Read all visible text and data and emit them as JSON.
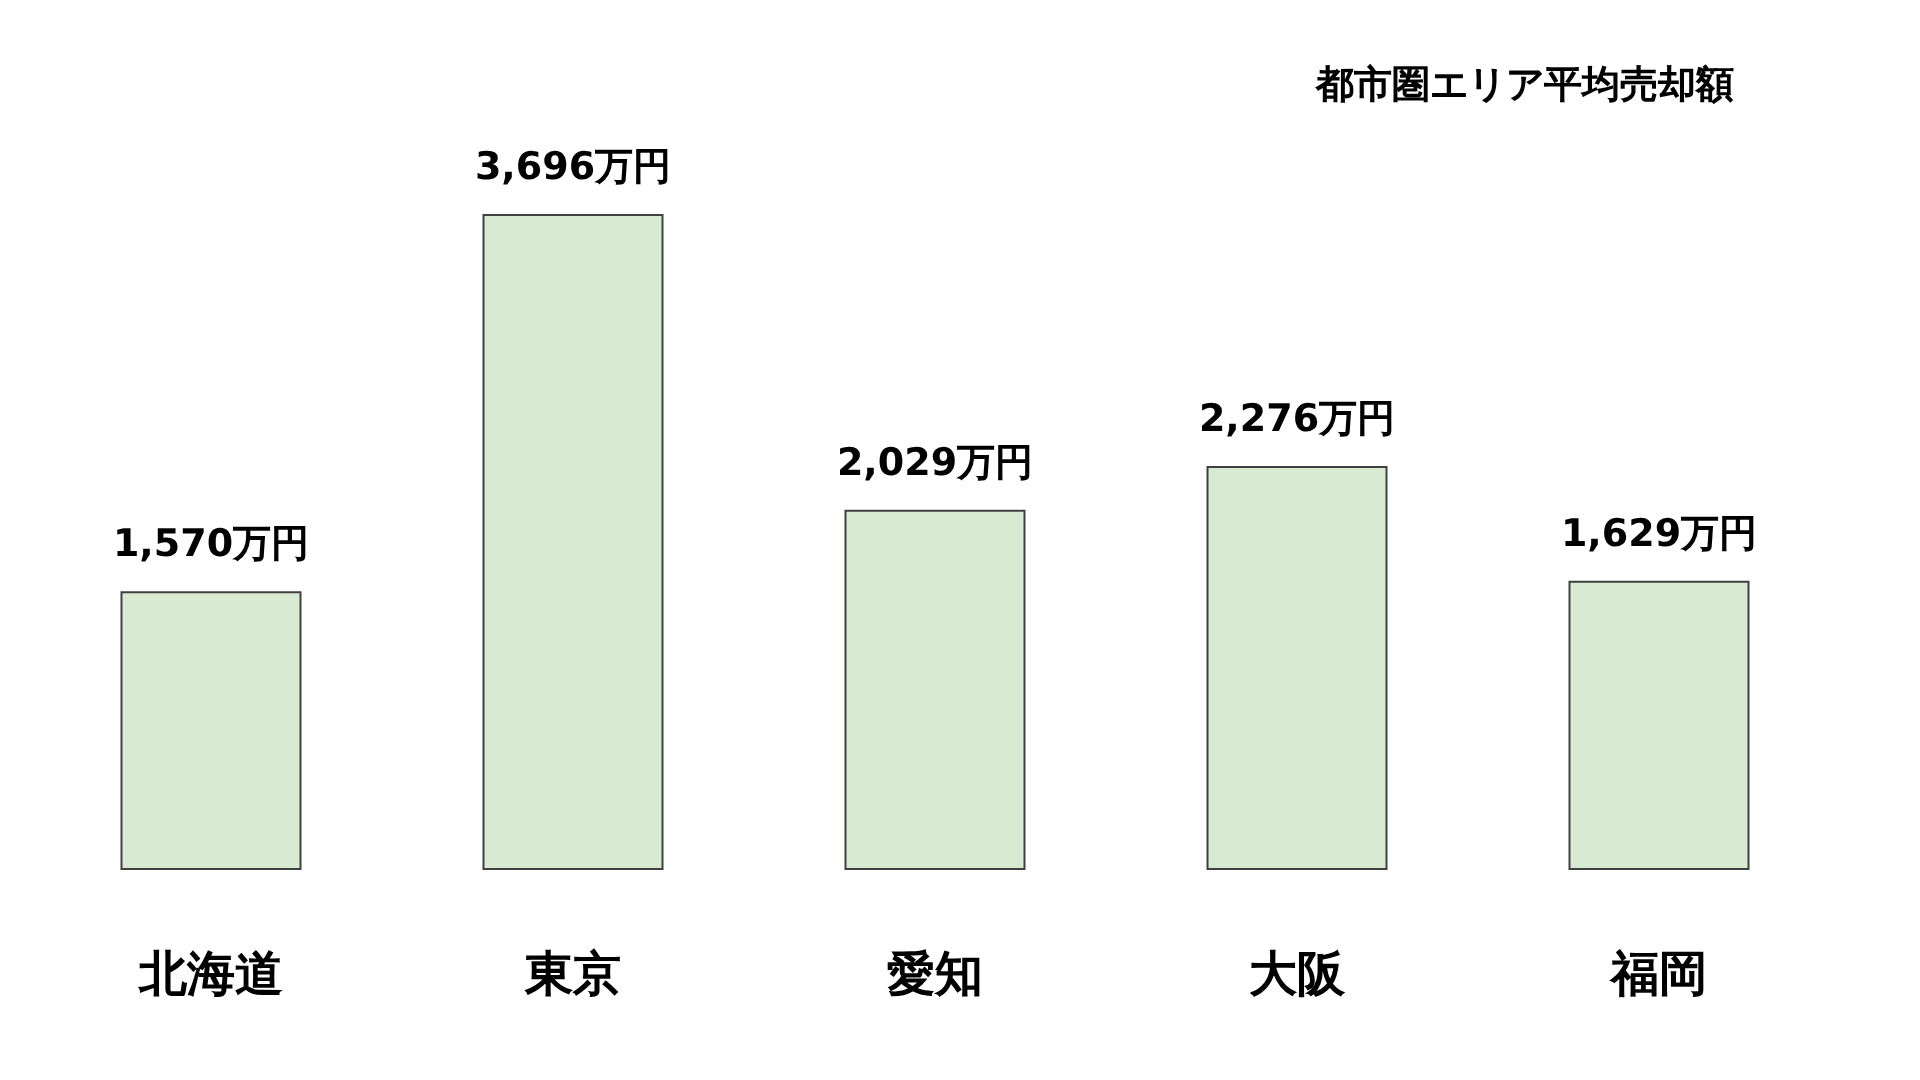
{
  "chart_data": {
    "type": "bar",
    "title": "都市圏エリア平均売却額",
    "categories": [
      "北海道",
      "東京",
      "愛知",
      "大阪",
      "福岡"
    ],
    "values": [
      1570,
      3696,
      2029,
      2276,
      1629
    ],
    "value_labels": [
      "1,570万円",
      "3,696万円",
      "2,029万円",
      "2,276万円",
      "1,629万円"
    ],
    "color": "#d9ead3"
  }
}
